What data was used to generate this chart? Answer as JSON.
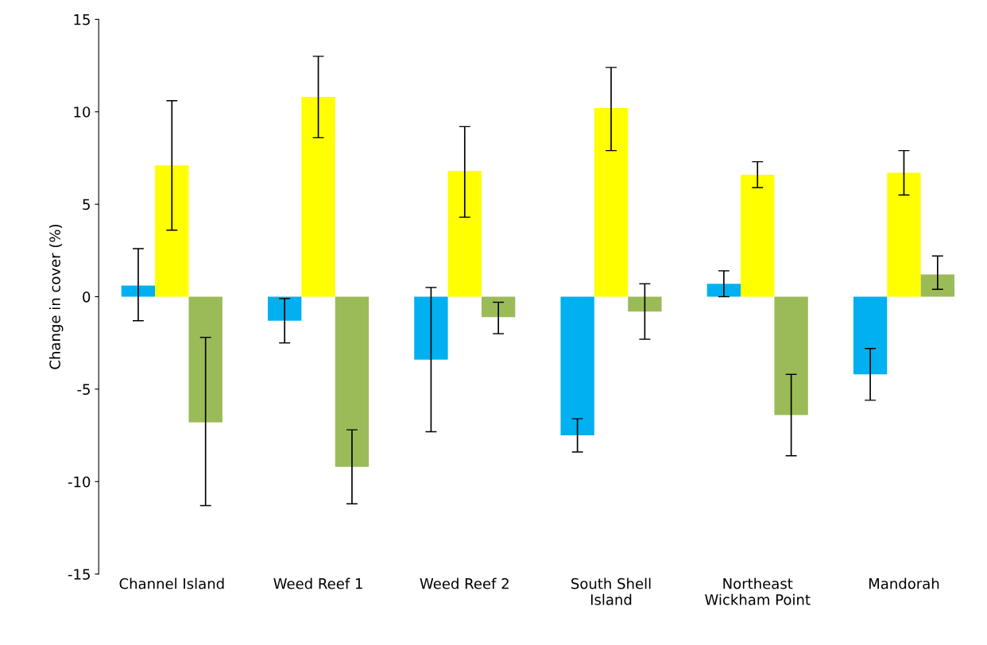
{
  "chart_data": {
    "type": "bar",
    "ylabel": "Change in cover (%)",
    "categories": [
      "Channel Island",
      "Weed Reef 1",
      "Weed Reef 2",
      "South Shell\nIsland",
      "Northeast\nWickham Point",
      "Mandorah"
    ],
    "series": [
      {
        "color": "#00b0f0",
        "values": [
          0.6,
          -1.3,
          -3.4,
          -7.5,
          0.7,
          -4.2
        ],
        "errors": [
          [
            -1.3,
            2.6
          ],
          [
            -2.5,
            -0.1
          ],
          [
            -7.3,
            0.5
          ],
          [
            -8.4,
            -6.6
          ],
          [
            0.0,
            1.4
          ],
          [
            -5.6,
            -2.8
          ]
        ]
      },
      {
        "color": "#ffff00",
        "values": [
          7.1,
          10.8,
          6.8,
          10.2,
          6.6,
          6.7
        ],
        "errors": [
          [
            3.6,
            10.6
          ],
          [
            8.6,
            13.0
          ],
          [
            4.3,
            9.2
          ],
          [
            7.9,
            12.4
          ],
          [
            5.9,
            7.3
          ],
          [
            5.5,
            7.9
          ]
        ]
      },
      {
        "color": "#9bbb59",
        "values": [
          -6.8,
          -9.2,
          -1.1,
          -0.8,
          -6.4,
          1.2
        ],
        "errors": [
          [
            -11.3,
            -2.2
          ],
          [
            -11.2,
            -7.2
          ],
          [
            -2.0,
            -0.3
          ],
          [
            -2.3,
            0.7
          ],
          [
            -8.6,
            -4.2
          ],
          [
            0.4,
            2.2
          ]
        ]
      }
    ],
    "ylim": [
      -15,
      15
    ],
    "yticks": [
      -15,
      -10,
      -5,
      0,
      5,
      10,
      15
    ],
    "grid": false,
    "legend": false
  }
}
